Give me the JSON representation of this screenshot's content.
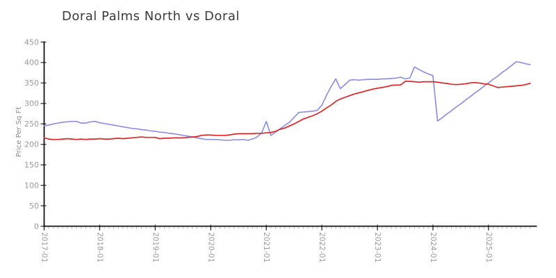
{
  "title": "Doral Palms North vs Doral",
  "chart_data": {
    "type": "line",
    "title": "Doral Palms North vs Doral",
    "xlabel": "",
    "ylabel": "Price Per Sq Ft",
    "ylim": [
      0,
      450
    ],
    "yticks": [
      0,
      50,
      100,
      150,
      200,
      250,
      300,
      350,
      400,
      450
    ],
    "grid": false,
    "legend_position": "none",
    "xtick_labels": [
      "2017-01",
      "2018-01",
      "2019-01",
      "2020-01",
      "2021-01",
      "2022-01",
      "2023-01",
      "2024-01",
      "2025-01"
    ],
    "xtick_indices": [
      0,
      12,
      24,
      36,
      48,
      60,
      72,
      84,
      96
    ],
    "x": [
      "2017-01",
      "2017-02",
      "2017-03",
      "2017-04",
      "2017-05",
      "2017-06",
      "2017-07",
      "2017-08",
      "2017-09",
      "2017-10",
      "2017-11",
      "2017-12",
      "2018-01",
      "2018-02",
      "2018-03",
      "2018-04",
      "2018-05",
      "2018-06",
      "2018-07",
      "2018-08",
      "2018-09",
      "2018-10",
      "2018-11",
      "2018-12",
      "2019-01",
      "2019-02",
      "2019-03",
      "2019-04",
      "2019-05",
      "2019-06",
      "2019-07",
      "2019-08",
      "2019-09",
      "2019-10",
      "2019-11",
      "2019-12",
      "2020-01",
      "2020-02",
      "2020-03",
      "2020-04",
      "2020-05",
      "2020-06",
      "2020-07",
      "2020-08",
      "2020-09",
      "2020-10",
      "2020-11",
      "2020-12",
      "2021-01",
      "2021-02",
      "2021-03",
      "2021-04",
      "2021-05",
      "2021-06",
      "2021-07",
      "2021-08",
      "2021-09",
      "2021-10",
      "2021-11",
      "2021-12",
      "2022-01",
      "2022-02",
      "2022-03",
      "2022-04",
      "2022-05",
      "2022-06",
      "2022-07",
      "2022-08",
      "2022-09",
      "2022-10",
      "2022-11",
      "2022-12",
      "2023-01",
      "2023-02",
      "2023-03",
      "2023-04",
      "2023-05",
      "2023-06",
      "2023-07",
      "2023-08",
      "2023-09",
      "2023-10",
      "2023-11",
      "2023-12",
      "2024-01",
      "2024-02",
      "2024-03",
      "2024-04",
      "2024-05",
      "2024-06",
      "2024-07",
      "2024-08",
      "2024-09",
      "2024-10",
      "2024-11",
      "2024-12",
      "2025-01",
      "2025-02",
      "2025-03",
      "2025-04",
      "2025-05",
      "2025-06",
      "2025-07",
      "2025-08",
      "2025-09",
      "2025-10"
    ],
    "series": [
      {
        "name": "Doral Palms North",
        "color": "#8f8fe4",
        "values": [
          245,
          247,
          250,
          252,
          254,
          255,
          256,
          256,
          252,
          252,
          255,
          256,
          253,
          251,
          249,
          247,
          245,
          243,
          241,
          239,
          238,
          236,
          235,
          233,
          232,
          230,
          229,
          227,
          226,
          224,
          222,
          220,
          218,
          216,
          214,
          212,
          212,
          212,
          211,
          210,
          210,
          211,
          211,
          212,
          210,
          213,
          218,
          228,
          256,
          222,
          230,
          238,
          246,
          254,
          266,
          278,
          279,
          280,
          281,
          283,
          296,
          320,
          341,
          360,
          336,
          346,
          357,
          358,
          357,
          358,
          359,
          359,
          359,
          360,
          360,
          361,
          362,
          364,
          360,
          362,
          389,
          383,
          377,
          372,
          368,
          257,
          265,
          274,
          282,
          291,
          299,
          308,
          316,
          325,
          333,
          342,
          350,
          359,
          367,
          376,
          384,
          393,
          402,
          400,
          397,
          395
        ]
      },
      {
        "name": "Doral",
        "color": "#e02424",
        "values": [
          216,
          213,
          212,
          212,
          213,
          214,
          213,
          212,
          213,
          212,
          213,
          213,
          214,
          213,
          213,
          214,
          215,
          214,
          215,
          216,
          217,
          218,
          217,
          217,
          217,
          214,
          215,
          215,
          216,
          216,
          216,
          217,
          218,
          219,
          222,
          223,
          223,
          222,
          222,
          222,
          223,
          225,
          226,
          226,
          226,
          226,
          227,
          227,
          228,
          229,
          232,
          237,
          240,
          245,
          250,
          256,
          262,
          266,
          270,
          275,
          281,
          289,
          296,
          305,
          311,
          315,
          319,
          323,
          326,
          329,
          332,
          335,
          337,
          339,
          341,
          344,
          345,
          345,
          354,
          354,
          353,
          352,
          353,
          353,
          353,
          352,
          350,
          349,
          347,
          346,
          347,
          348,
          350,
          351,
          350,
          348,
          347,
          343,
          339,
          340,
          341,
          342,
          343,
          344,
          346,
          349
        ]
      }
    ],
    "axis_color": "#111111",
    "major_tick_color": "#333333",
    "minor_tick_color": "#c2c2c2",
    "tick_label_color": "#9a9a9a",
    "ylabel_color": "#8c8c8c",
    "title_color": "#3a3a3a"
  }
}
